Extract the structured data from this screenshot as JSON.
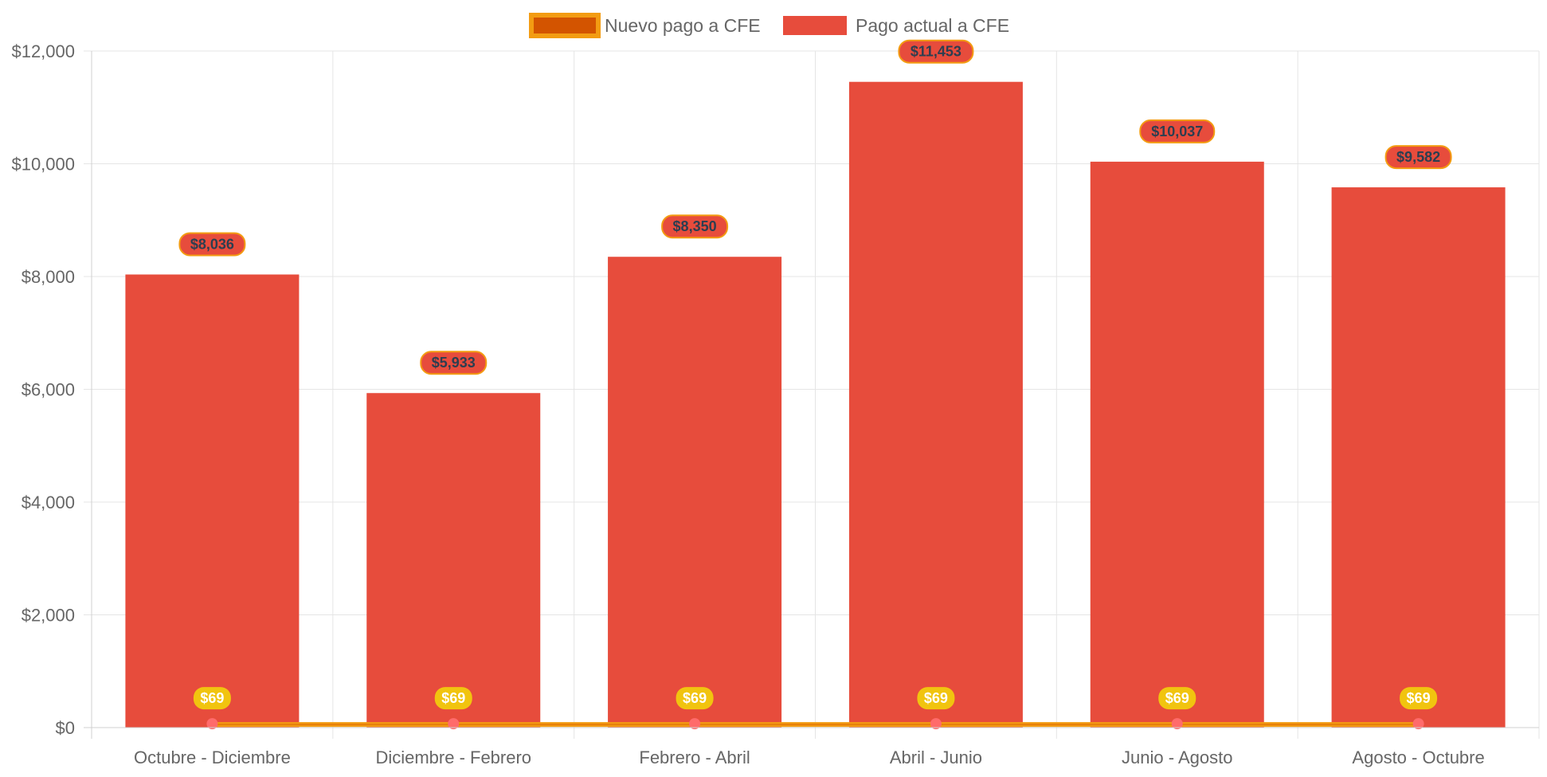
{
  "chart_data": {
    "type": "bar",
    "categories": [
      "Octubre - Diciembre",
      "Diciembre - Febrero",
      "Febrero - Abril",
      "Abril - Junio",
      "Junio - Agosto",
      "Agosto - Octubre"
    ],
    "series": [
      {
        "name": "Nuevo pago a CFE",
        "type": "line",
        "values": [
          69,
          69,
          69,
          69,
          69,
          69
        ],
        "labels": [
          "$69",
          "$69",
          "$69",
          "$69",
          "$69",
          "$69"
        ],
        "color": "#f39c12",
        "fill": "#d35400",
        "point_color": "#ff6b6b",
        "label_bg": "#f1c40f",
        "label_color": "#ffffff"
      },
      {
        "name": "Pago actual a CFE",
        "type": "bar",
        "values": [
          8036,
          5933,
          8350,
          11453,
          10037,
          9582
        ],
        "labels": [
          "$8,036",
          "$5,933",
          "$8,350",
          "$11,453",
          "$10,037",
          "$9,582"
        ],
        "color": "#e74c3c",
        "label_border": "#f39c12",
        "label_color": "#2c3e50"
      }
    ],
    "ylim": [
      0,
      12000
    ],
    "yticks": [
      0,
      2000,
      4000,
      6000,
      8000,
      10000,
      12000
    ],
    "ytick_labels": [
      "$0",
      "$2,000",
      "$4,000",
      "$6,000",
      "$8,000",
      "$10,000",
      "$12,000"
    ],
    "grid": true,
    "legend_position": "top-center",
    "title": "",
    "xlabel": "",
    "ylabel": ""
  }
}
